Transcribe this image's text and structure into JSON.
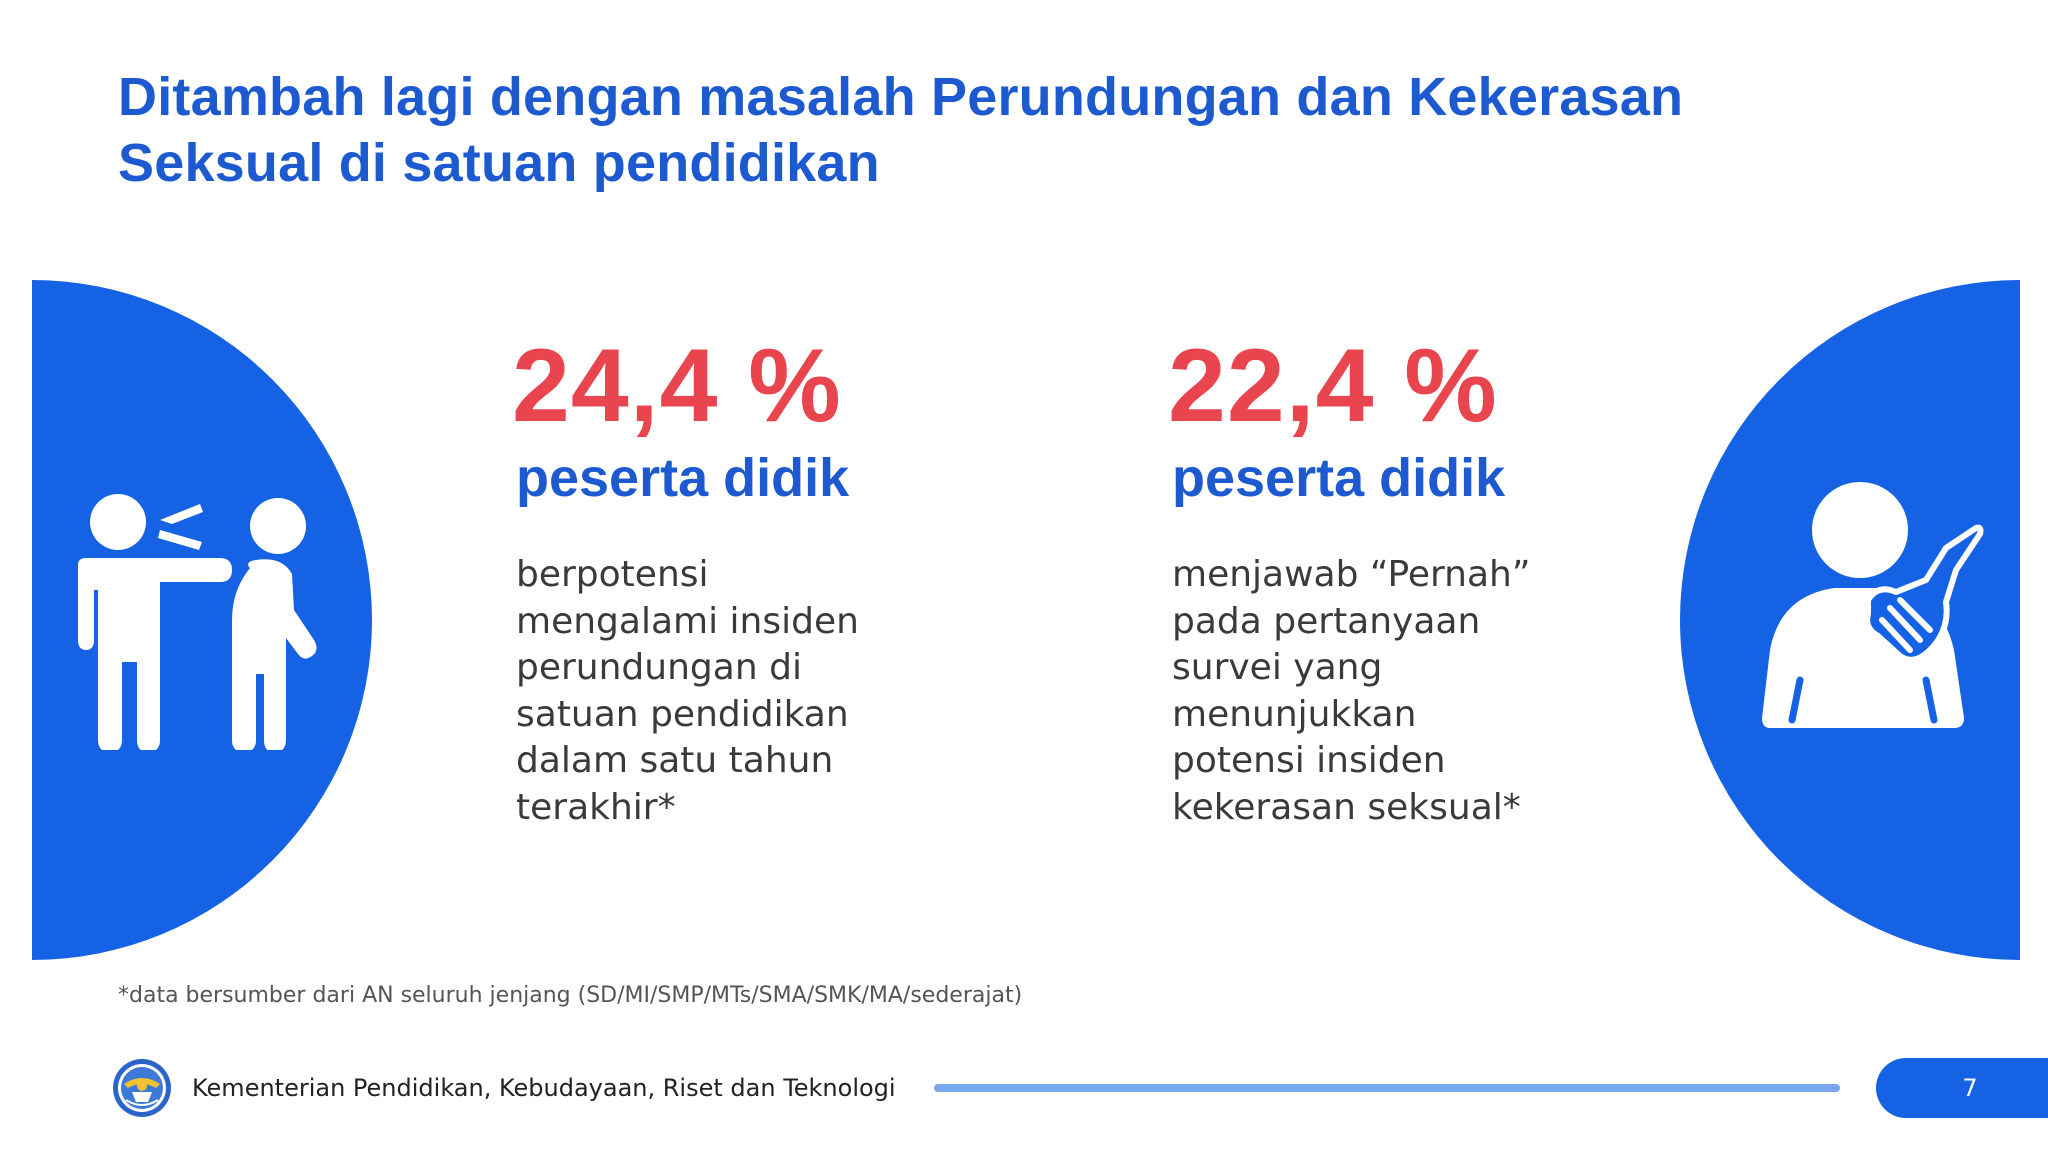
{
  "slide": {
    "title_lines": [
      "Ditambah lagi dengan masalah Perundungan dan  Kekerasan",
      "Seksual di satuan pendidikan"
    ],
    "stats": [
      {
        "value": "24,4 %",
        "subtitle": "peserta didik",
        "description_lines": [
          "berpotensi",
          "mengalami insiden",
          "perundungan di",
          "satuan pendidikan",
          "dalam satu tahun",
          "terakhir*"
        ],
        "icon": "bullying-icon"
      },
      {
        "value": "22,4 %",
        "subtitle": "peserta didik",
        "description_lines": [
          "menjawab “Pernah”",
          "pada pertanyaan",
          "survei yang",
          "menunjukkan",
          "potensi insiden",
          "kekerasan seksual*"
        ],
        "icon": "sexual-harassment-icon"
      }
    ],
    "footnote": "*data bersumber dari AN seluruh jenjang (SD/MI/SMP/MTs/SMA/SMK/MA/sederajat)"
  },
  "footer": {
    "organization": "Kementerian Pendidikan, Kebudayaan, Riset dan Teknologi",
    "page_number": "7",
    "logo_icon": "tut-wuri-handayani-logo"
  },
  "colors": {
    "title_blue": "#1d5ad0",
    "circle_blue": "#1662e4",
    "stat_red": "#e8454f",
    "body_text": "#3a3a3a",
    "footer_line": "#7aa6ef"
  }
}
